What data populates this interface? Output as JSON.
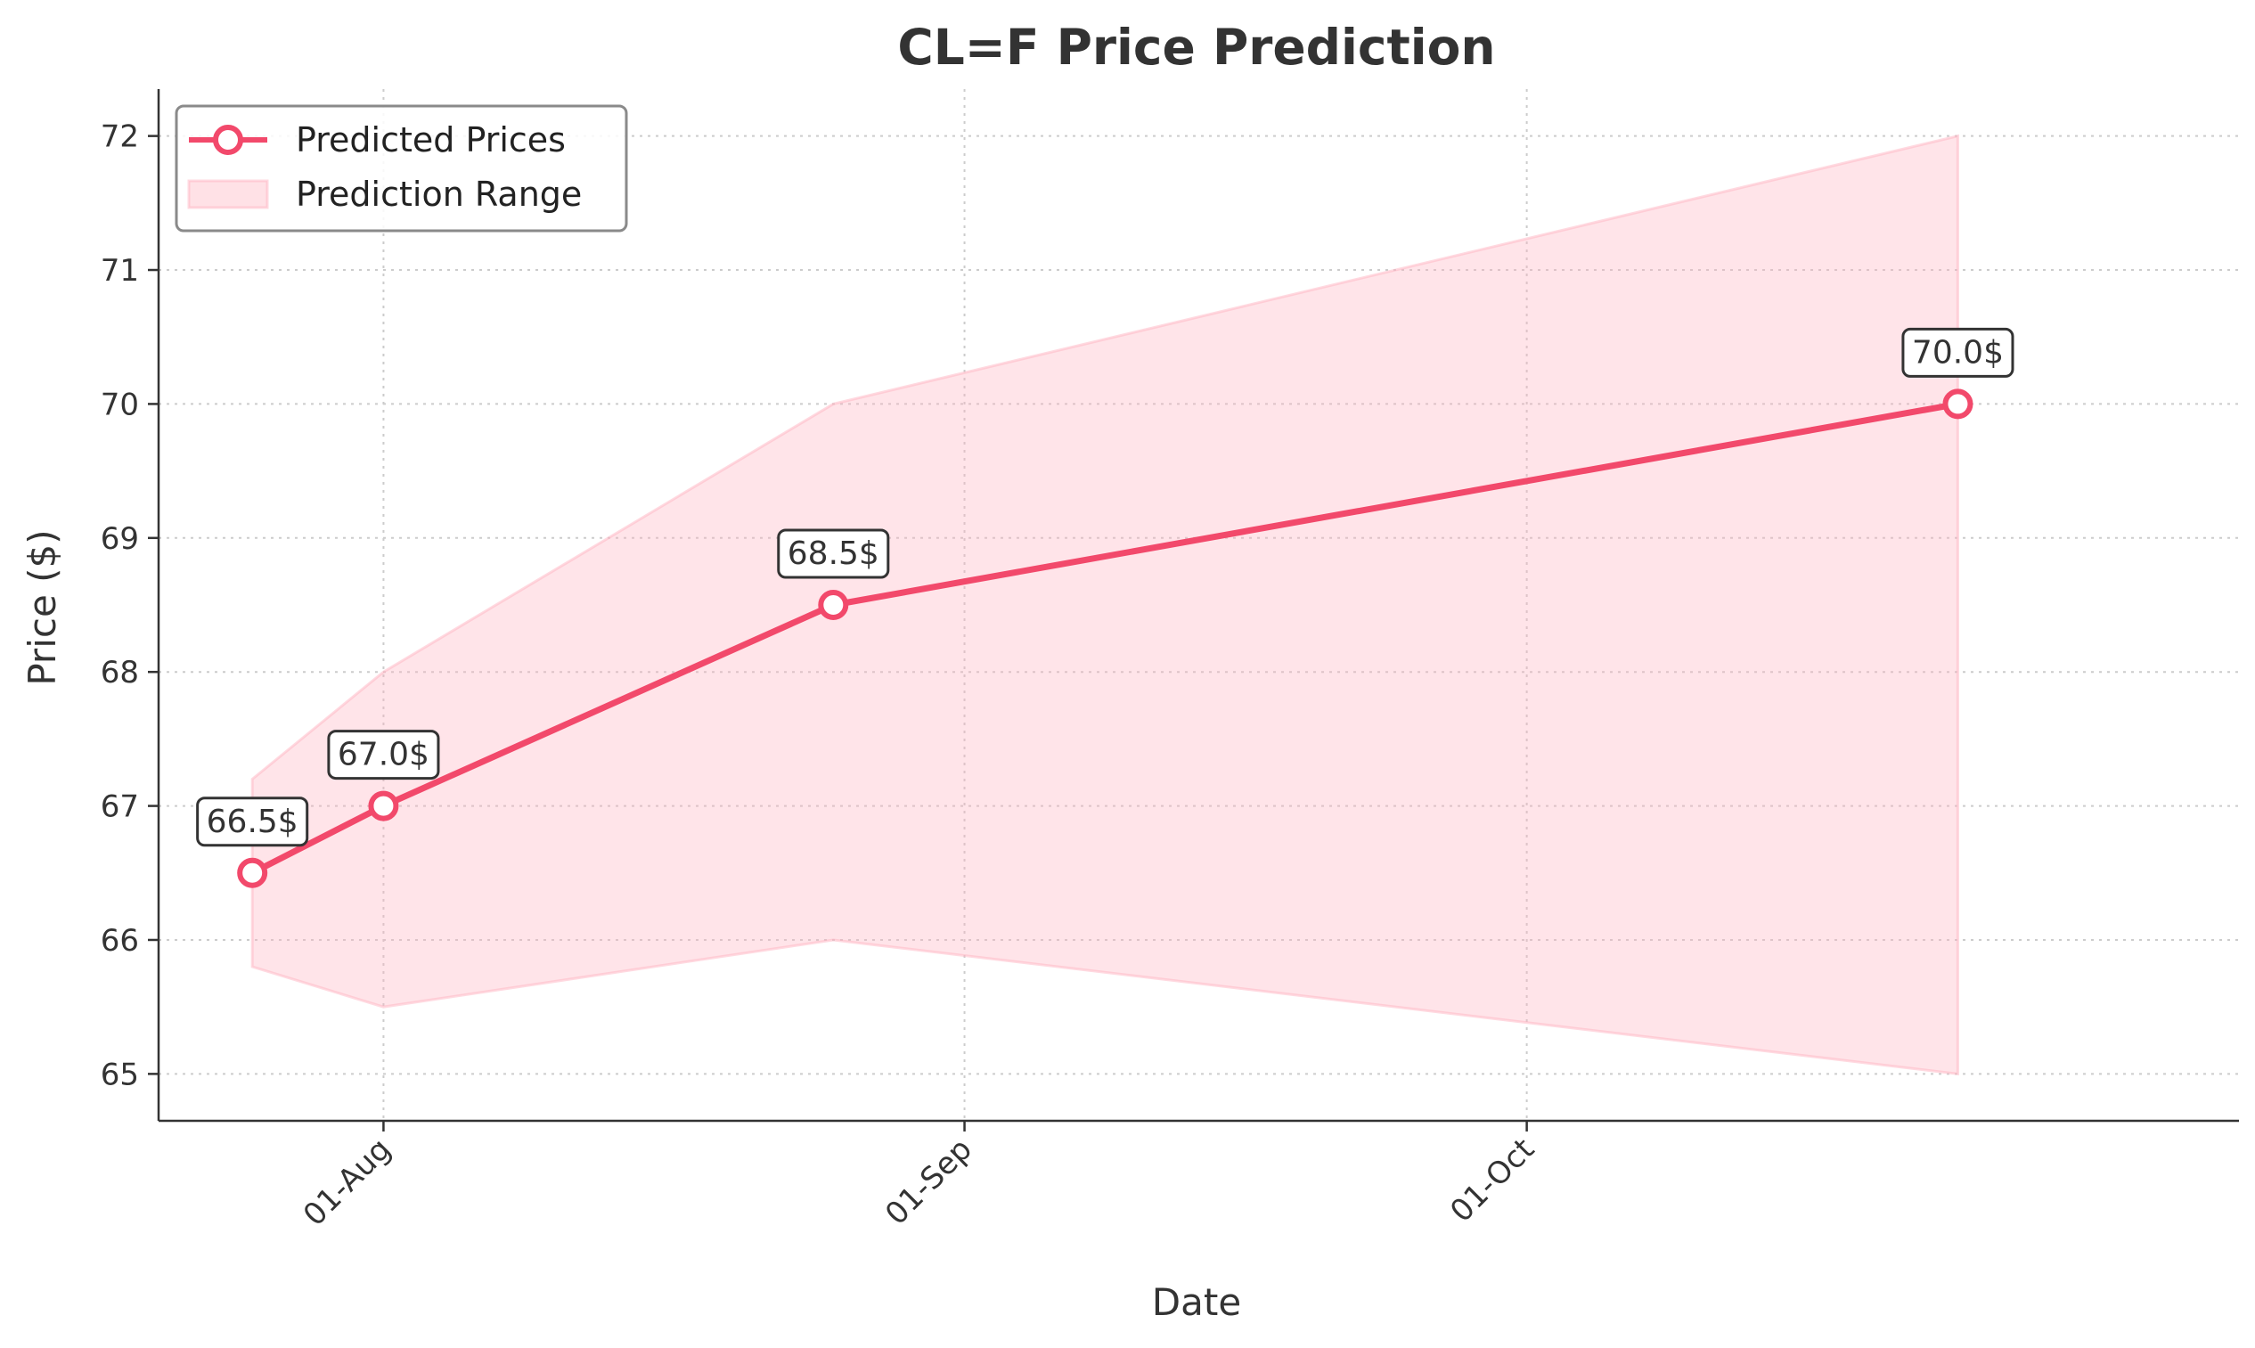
{
  "chart_data": {
    "type": "line",
    "title": "CL=F Price Prediction",
    "xlabel": "Date",
    "ylabel": "Price ($)",
    "x_ticks": [
      {
        "label": "01-Aug",
        "date": "2024-08-01"
      },
      {
        "label": "01-Sep",
        "date": "2024-09-01"
      },
      {
        "label": "01-Oct",
        "date": "2024-10-01"
      }
    ],
    "y_ticks": [
      65,
      66,
      67,
      68,
      69,
      70,
      71,
      72
    ],
    "xlim": [
      "2024-07-20",
      "2024-11-08"
    ],
    "ylim": [
      64.65,
      72.35
    ],
    "grid": true,
    "legend_position": "top-left",
    "series": [
      {
        "name": "Predicted Prices",
        "color": "#f2496b",
        "points": [
          {
            "date": "2024-07-25",
            "value": 66.5,
            "label": "66.5$"
          },
          {
            "date": "2024-08-01",
            "value": 67.0,
            "label": "67.0$"
          },
          {
            "date": "2024-08-25",
            "value": 68.5,
            "label": "68.5$"
          },
          {
            "date": "2024-10-24",
            "value": 70.0,
            "label": "70.0$"
          }
        ]
      }
    ],
    "range": {
      "name": "Prediction Range",
      "color": "#ffb3c1",
      "points": [
        {
          "date": "2024-07-25",
          "low": 65.8,
          "high": 67.2
        },
        {
          "date": "2024-08-01",
          "low": 65.5,
          "high": 68.0
        },
        {
          "date": "2024-08-25",
          "low": 66.0,
          "high": 70.0
        },
        {
          "date": "2024-10-24",
          "low": 65.0,
          "high": 72.0
        }
      ]
    }
  }
}
